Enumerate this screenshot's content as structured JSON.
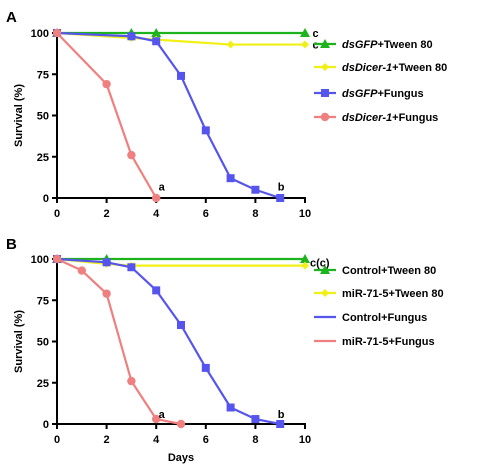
{
  "chart_data": [
    {
      "type": "line",
      "panel_label": "A",
      "xlabel": "",
      "ylabel": "Survival (%)",
      "xlim": [
        0,
        10
      ],
      "ylim": [
        0,
        100
      ],
      "xticks": [
        "0",
        "2",
        "4",
        "6",
        "8",
        "10"
      ],
      "yticks": [
        "0",
        "25",
        "50",
        "75",
        "100"
      ],
      "legend_position": "right",
      "series": [
        {
          "name": "dsGFP+Tween 80",
          "name_parts": [
            {
              "t": "dsGFP",
              "italic": true
            },
            {
              "t": "+Tween 80",
              "italic": false
            }
          ],
          "color": "#1db31d",
          "marker": "triangle",
          "x": [
            0,
            3,
            4,
            10
          ],
          "y": [
            100,
            100,
            100,
            100
          ]
        },
        {
          "name": "dsDicer-1+Tween 80",
          "name_parts": [
            {
              "t": "dsDicer-1",
              "italic": true
            },
            {
              "t": "+Tween 80",
              "italic": false
            }
          ],
          "color": "#f0f014",
          "marker": "diamond",
          "x": [
            0,
            3,
            4,
            7,
            10
          ],
          "y": [
            100,
            97,
            96,
            93,
            93
          ]
        },
        {
          "name": "dsGFP+Fungus",
          "name_parts": [
            {
              "t": "dsGFP",
              "italic": true
            },
            {
              "t": "+Fungus",
              "italic": false
            }
          ],
          "color": "#5555ee",
          "marker": "square",
          "x": [
            0,
            3,
            4,
            5,
            6,
            7,
            8,
            9
          ],
          "y": [
            100,
            98,
            95,
            74,
            41,
            12,
            5,
            0
          ]
        },
        {
          "name": "dsDicer-1+Fungus",
          "name_parts": [
            {
              "t": "dsDicer-1",
              "italic": true
            },
            {
              "t": "+Fungus",
              "italic": false
            }
          ],
          "color": "#f07f7f",
          "marker": "circle",
          "x": [
            0,
            2,
            3,
            4
          ],
          "y": [
            100,
            69,
            26,
            0
          ]
        }
      ],
      "annotations": [
        {
          "text": "c",
          "x": 10.3,
          "y": 100
        },
        {
          "text": "c",
          "x": 10.3,
          "y": 93
        },
        {
          "text": "b",
          "x": 8.9,
          "y": 7
        },
        {
          "text": "a",
          "x": 4.1,
          "y": 7
        }
      ]
    },
    {
      "type": "line",
      "panel_label": "B",
      "xlabel": "Days",
      "ylabel": "Survival (%)",
      "xlim": [
        0,
        10
      ],
      "ylim": [
        0,
        100
      ],
      "xticks": [
        "0",
        "2",
        "4",
        "6",
        "8",
        "10"
      ],
      "yticks": [
        "0",
        "25",
        "50",
        "75",
        "100"
      ],
      "legend_position": "right",
      "series": [
        {
          "name": "Control+Tween 80",
          "name_parts": [
            {
              "t": "Control+Tween 80",
              "italic": false
            }
          ],
          "color": "#1db31d",
          "marker": "triangle",
          "x": [
            0,
            2,
            10
          ],
          "y": [
            100,
            100,
            100
          ]
        },
        {
          "name": "miR-71-5+Tween 80",
          "name_parts": [
            {
              "t": "miR-71-5+Tween 80",
              "italic": false
            }
          ],
          "color": "#f0f014",
          "marker": "diamond",
          "x": [
            0,
            2,
            3,
            10
          ],
          "y": [
            100,
            97,
            96,
            96
          ]
        },
        {
          "name": "Control+Fungus",
          "name_parts": [
            {
              "t": "Control+Fungus",
              "italic": false
            }
          ],
          "color": "#5555ee",
          "marker": "square",
          "x": [
            0,
            2,
            3,
            4,
            5,
            6,
            7,
            8,
            9
          ],
          "y": [
            100,
            98,
            95,
            81,
            60,
            34,
            10,
            3,
            0
          ]
        },
        {
          "name": "miR-71-5+Fungus",
          "name_parts": [
            {
              "t": "miR-71-5+Fungus",
              "italic": false
            }
          ],
          "color": "#f07f7f",
          "marker": "circle",
          "x": [
            0,
            1,
            2,
            3,
            4,
            5
          ],
          "y": [
            100,
            93,
            79,
            26,
            3,
            0
          ]
        }
      ],
      "legend_markers": [
        "triangle",
        "diamond",
        "none",
        "none"
      ],
      "annotations": [
        {
          "text": "c(c)",
          "x": 10.2,
          "y": 98
        },
        {
          "text": "b",
          "x": 8.9,
          "y": 6
        },
        {
          "text": "a",
          "x": 4.1,
          "y": 6
        }
      ]
    }
  ]
}
